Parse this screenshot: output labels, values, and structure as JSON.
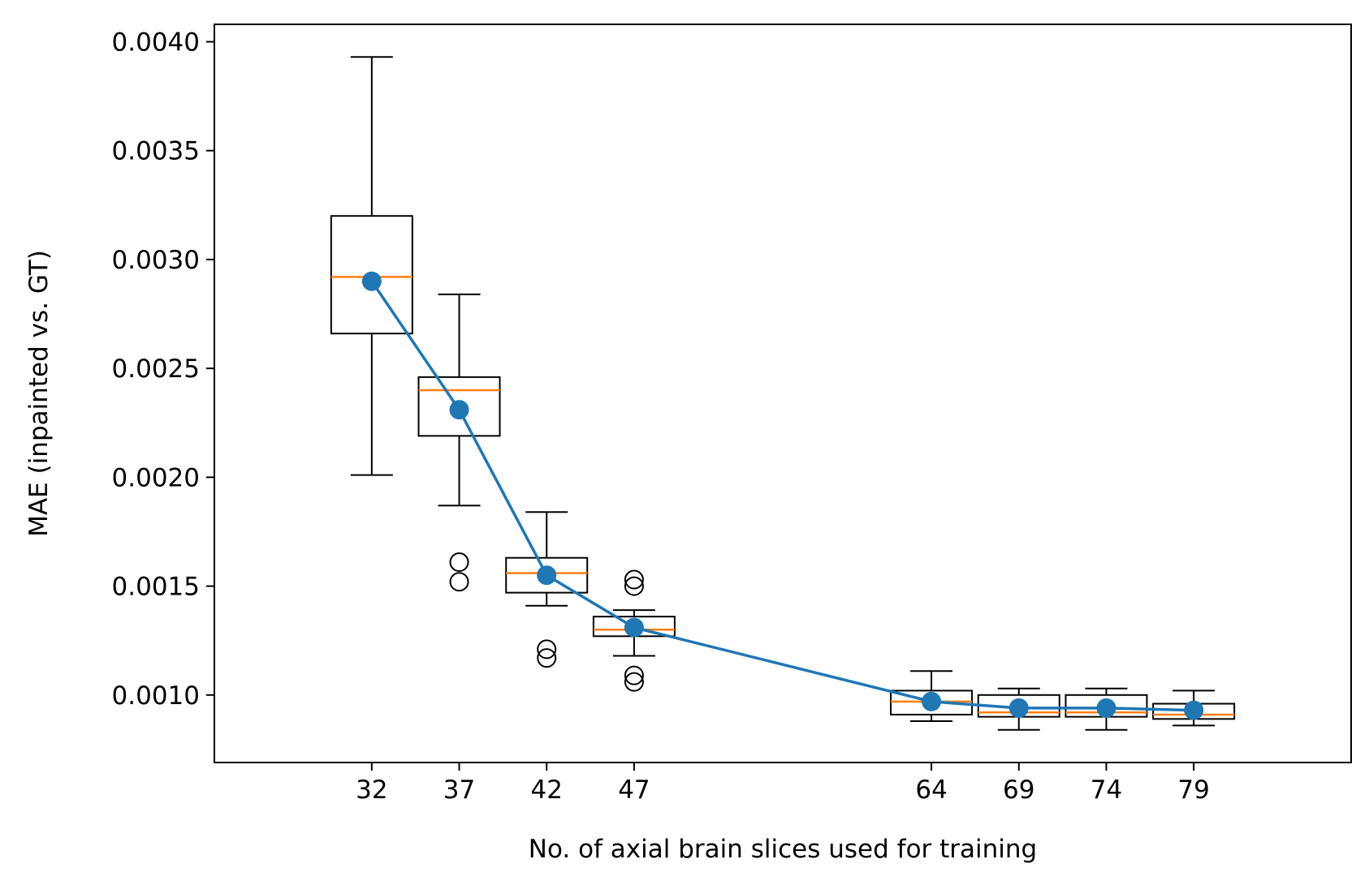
{
  "chart_data": {
    "type": "box",
    "title": "",
    "xlabel": "No. of axial brain slices used for training",
    "ylabel": "MAE (inpainted vs. GT)",
    "xlim": [
      23,
      88
    ],
    "ylim": [
      0.00069,
      0.00408
    ],
    "xticks": [
      32,
      37,
      42,
      47,
      64,
      69,
      74,
      79
    ],
    "yticks": [
      0.001,
      0.0015,
      0.002,
      0.0025,
      0.003,
      0.0035,
      0.004
    ],
    "ytick_labels": [
      "0.0010",
      "0.0015",
      "0.0020",
      "0.0025",
      "0.0030",
      "0.0035",
      "0.0040"
    ],
    "grid": false,
    "boxes": [
      {
        "x": 32,
        "whisker_low": 0.00201,
        "q1": 0.00266,
        "median": 0.00292,
        "q3": 0.0032,
        "whisker_high": 0.00393,
        "outliers": []
      },
      {
        "x": 37,
        "whisker_low": 0.00187,
        "q1": 0.00219,
        "median": 0.0024,
        "q3": 0.00246,
        "whisker_high": 0.00284,
        "outliers": [
          0.00161,
          0.00152
        ]
      },
      {
        "x": 42,
        "whisker_low": 0.00141,
        "q1": 0.00147,
        "median": 0.00156,
        "q3": 0.00163,
        "whisker_high": 0.00184,
        "outliers": [
          0.00121,
          0.00117
        ]
      },
      {
        "x": 47,
        "whisker_low": 0.00118,
        "q1": 0.00127,
        "median": 0.0013,
        "q3": 0.00136,
        "whisker_high": 0.00139,
        "outliers": [
          0.00153,
          0.0015,
          0.00109,
          0.00106
        ]
      },
      {
        "x": 64,
        "whisker_low": 0.00088,
        "q1": 0.00091,
        "median": 0.00097,
        "q3": 0.00102,
        "whisker_high": 0.00111,
        "outliers": []
      },
      {
        "x": 69,
        "whisker_low": 0.00084,
        "q1": 0.0009,
        "median": 0.00092,
        "q3": 0.001,
        "whisker_high": 0.00103,
        "outliers": []
      },
      {
        "x": 74,
        "whisker_low": 0.00084,
        "q1": 0.0009,
        "median": 0.00092,
        "q3": 0.001,
        "whisker_high": 0.00103,
        "outliers": []
      },
      {
        "x": 79,
        "whisker_low": 0.00086,
        "q1": 0.00089,
        "median": 0.00091,
        "q3": 0.00096,
        "whisker_high": 0.00102,
        "outliers": []
      }
    ],
    "series": [
      {
        "name": "mean",
        "x": [
          32,
          37,
          42,
          47,
          64,
          69,
          74,
          79
        ],
        "values": [
          0.0029,
          0.00231,
          0.00155,
          0.00131,
          0.00097,
          0.00094,
          0.00094,
          0.00093
        ]
      }
    ],
    "colors": {
      "box": "#000000",
      "median": "#ff7f0e",
      "mean_line": "#1f77b4",
      "axis": "#000000"
    }
  }
}
